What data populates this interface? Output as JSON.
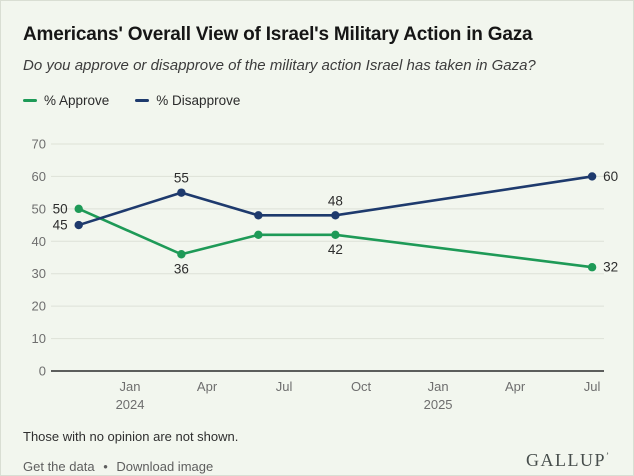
{
  "chart_data": {
    "type": "line",
    "title": "Americans' Overall View of Israel's Military Action in Gaza",
    "subtitle": "Do you approve or disapprove of the military action Israel has taken in Gaza?",
    "xlabel": "",
    "ylabel": "",
    "ylim": [
      0,
      70
    ],
    "yticks": [
      0,
      10,
      20,
      30,
      40,
      50,
      60,
      70
    ],
    "grid": true,
    "legend_position": "top-left",
    "x_unit": "months since Nov 2023",
    "x_axis": {
      "ticks": [
        {
          "label": "Jan",
          "year": "2024",
          "m": 2
        },
        {
          "label": "Apr",
          "m": 5
        },
        {
          "label": "Jul",
          "m": 8
        },
        {
          "label": "Oct",
          "m": 11
        },
        {
          "label": "Jan",
          "year": "2025",
          "m": 14
        },
        {
          "label": "Apr",
          "m": 17
        },
        {
          "label": "Jul",
          "m": 20
        }
      ]
    },
    "series": [
      {
        "name": "% Approve",
        "color": "#1e9a57",
        "dates": [
          "Nov 2023",
          "Mar 2024",
          "Jun 2024",
          "Sep 2024",
          "Jul 2025"
        ],
        "m": [
          0,
          4,
          7,
          10,
          20
        ],
        "values": [
          50,
          36,
          42,
          42,
          32
        ],
        "point_labels": [
          {
            "m": 0,
            "text": "50",
            "pos": "left"
          },
          {
            "m": 4,
            "text": "36",
            "pos": "below"
          },
          {
            "m": 10,
            "text": "42",
            "pos": "below"
          },
          {
            "m": 20,
            "text": "32",
            "pos": "right"
          }
        ]
      },
      {
        "name": "% Disapprove",
        "color": "#1e3a6d",
        "dates": [
          "Nov 2023",
          "Mar 2024",
          "Jun 2024",
          "Sep 2024",
          "Jul 2025"
        ],
        "m": [
          0,
          4,
          7,
          10,
          20
        ],
        "values": [
          45,
          55,
          48,
          48,
          60
        ],
        "point_labels": [
          {
            "m": 0,
            "text": "45",
            "pos": "left"
          },
          {
            "m": 4,
            "text": "55",
            "pos": "above"
          },
          {
            "m": 10,
            "text": "48",
            "pos": "above"
          },
          {
            "m": 20,
            "text": "60",
            "pos": "right"
          }
        ]
      }
    ],
    "colors": {
      "background": "#f2f6ee",
      "grid": "#dde1d7",
      "axis": "#2b2b2b",
      "tick_text": "#6e6e6e",
      "label_text": "#2d2d2d"
    }
  },
  "footer": {
    "note": "Those with no opinion are not shown.",
    "links": [
      "Get the data",
      "Download image"
    ],
    "separator": "•",
    "brand": "GALLUP",
    "brand_mark": "ʼ"
  }
}
